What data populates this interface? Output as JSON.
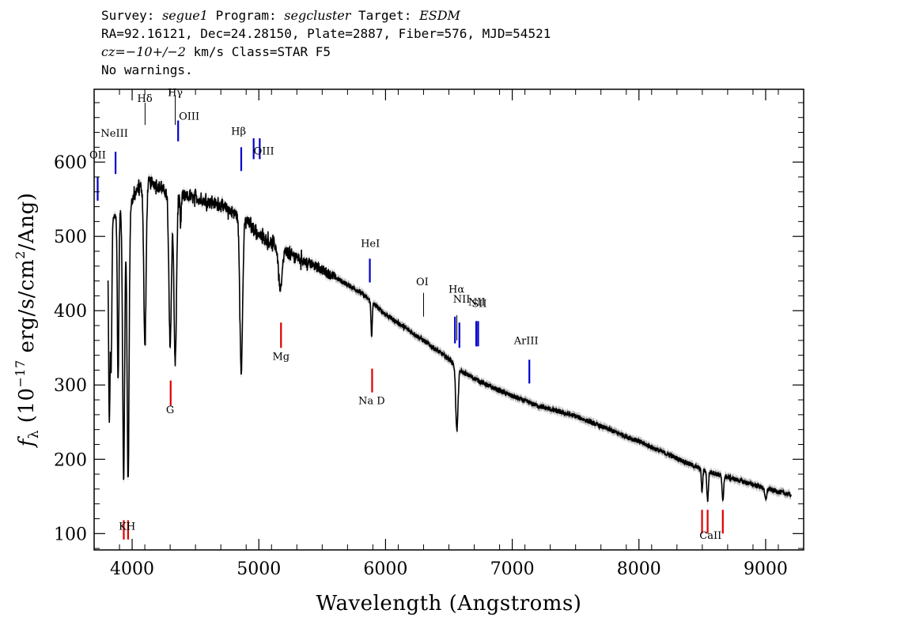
{
  "header": {
    "survey_label": "Survey:",
    "survey": "segue1",
    "program_label": "Program:",
    "program": "segcluster",
    "target_label": "Target:",
    "target": "ESDM",
    "coords": "RA=92.16121, Dec=24.28150, Plate=2887, Fiber=576, MJD=54521",
    "cz_label": "cz=",
    "cz_value": "−10+/−2",
    "cz_unit": " km/s Class=STAR F5",
    "warnings": "No warnings."
  },
  "chart_data": {
    "type": "line",
    "xlabel": "Wavelength (Angstroms)",
    "ylabel_prefix": "f",
    "ylabel_sub": "λ",
    "ylabel_rest": " (10",
    "ylabel_exp": "−17",
    "ylabel_units": " erg/s/cm",
    "ylabel_units_exp": "2",
    "ylabel_tail": "/Ang)",
    "xlim": [
      3700,
      9300
    ],
    "ylim": [
      78,
      698
    ],
    "xticks": [
      4000,
      5000,
      6000,
      7000,
      8000,
      9000
    ],
    "yticks": [
      100,
      200,
      300,
      400,
      500,
      600
    ],
    "xtick_labels": [
      "4000",
      "5000",
      "6000",
      "7000",
      "8000",
      "9000"
    ],
    "ytick_labels": [
      "100",
      "200",
      "300",
      "400",
      "500",
      "600"
    ],
    "colors": {
      "spectrum": "#000000",
      "error_band": "#b0b0b0",
      "emission": "#0000cc",
      "absorption": "#dd0000",
      "sky": "#000000"
    },
    "spectrum": {
      "continuum": [
        [
          3800,
          500
        ],
        [
          3880,
          535
        ],
        [
          3960,
          535
        ],
        [
          4050,
          565
        ],
        [
          4150,
          575
        ],
        [
          4300,
          555
        ],
        [
          4500,
          552
        ],
        [
          4700,
          542
        ],
        [
          4800,
          532
        ],
        [
          4900,
          522
        ],
        [
          5000,
          502
        ],
        [
          5200,
          480
        ],
        [
          5500,
          455
        ],
        [
          5800,
          425
        ],
        [
          6000,
          395
        ],
        [
          6300,
          360
        ],
        [
          6500,
          335
        ],
        [
          6600,
          318
        ],
        [
          6800,
          300
        ],
        [
          7000,
          285
        ],
        [
          7200,
          272
        ],
        [
          7500,
          258
        ],
        [
          8000,
          224
        ],
        [
          8500,
          186
        ],
        [
          9000,
          161
        ],
        [
          9200,
          152
        ]
      ],
      "absorption_features": [
        {
          "x": 3820,
          "depth": 260,
          "w": 6
        },
        {
          "x": 3835,
          "depth": 180,
          "w": 5
        },
        {
          "x": 3889,
          "depth": 230,
          "w": 6
        },
        {
          "x": 3933,
          "depth": 360,
          "w": 8
        },
        {
          "x": 3968,
          "depth": 360,
          "w": 8
        },
        {
          "x": 4101,
          "depth": 220,
          "w": 9
        },
        {
          "x": 4300,
          "depth": 200,
          "w": 10
        },
        {
          "x": 4340,
          "depth": 225,
          "w": 10
        },
        {
          "x": 4383,
          "depth": 40,
          "w": 4
        },
        {
          "x": 4861,
          "depth": 205,
          "w": 11
        },
        {
          "x": 5170,
          "depth": 55,
          "w": 14
        },
        {
          "x": 5890,
          "depth": 45,
          "w": 5
        },
        {
          "x": 6563,
          "depth": 85,
          "w": 9
        },
        {
          "x": 8498,
          "depth": 30,
          "w": 5
        },
        {
          "x": 8542,
          "depth": 40,
          "w": 6
        },
        {
          "x": 8662,
          "depth": 35,
          "w": 6
        },
        {
          "x": 9000,
          "depth": 15,
          "w": 8
        }
      ]
    },
    "lines": [
      {
        "label": "OII",
        "x": 3728,
        "type": "emission",
        "color": "#0000cc"
      },
      {
        "label": "NeIII",
        "x": 3869,
        "type": "emission",
        "color": "#0000cc"
      },
      {
        "label": "Hδ",
        "x": 4102,
        "type": "sky",
        "color": "#000000"
      },
      {
        "label": "Hγ",
        "x": 4340,
        "type": "sky",
        "color": "#000000"
      },
      {
        "label": "OIII",
        "x": 4363,
        "type": "emission",
        "color": "#0000cc"
      },
      {
        "label": "Hβ",
        "x": 4861,
        "type": "emission",
        "color": "#0000cc"
      },
      {
        "label": "OIII",
        "x": 4959,
        "type": "emission",
        "color": "#0000cc"
      },
      {
        "label": "OIII",
        "x": 5007,
        "type": "emission",
        "color": "#0000cc"
      },
      {
        "label": "HeI",
        "x": 5876,
        "type": "emission",
        "color": "#0000cc"
      },
      {
        "label": "OI",
        "x": 6300,
        "type": "sky",
        "color": "#000000"
      },
      {
        "label": "NII",
        "x": 6548,
        "type": "emission",
        "color": "#0000cc"
      },
      {
        "label": "Hα",
        "x": 6563,
        "type": "sky",
        "color": "#000000"
      },
      {
        "label": "NII",
        "x": 6583,
        "type": "emission",
        "color": "#0000cc"
      },
      {
        "label": "SII",
        "x": 6716,
        "type": "emission",
        "color": "#0000cc"
      },
      {
        "label": "SII",
        "x": 6731,
        "type": "emission",
        "color": "#0000cc"
      },
      {
        "label": "ArIII",
        "x": 7135,
        "type": "emission",
        "color": "#0000cc"
      },
      {
        "label": "K",
        "x": 3934,
        "type": "absorption",
        "color": "#dd0000"
      },
      {
        "label": "H",
        "x": 3968,
        "type": "absorption",
        "color": "#dd0000"
      },
      {
        "label": "G",
        "x": 4304,
        "type": "absorption",
        "color": "#dd0000"
      },
      {
        "label": "Mg",
        "x": 5175,
        "type": "absorption",
        "color": "#dd0000"
      },
      {
        "label": "Na D",
        "x": 5894,
        "type": "absorption",
        "color": "#dd0000"
      },
      {
        "label": "CaII",
        "x": 8498,
        "type": "absorption",
        "color": "#dd0000"
      },
      {
        "label": "CaII",
        "x": 8542,
        "type": "absorption",
        "color": "#dd0000"
      },
      {
        "label": "CaII",
        "x": 8662,
        "type": "absorption",
        "color": "#dd0000"
      }
    ],
    "line_labels": [
      {
        "text": "OII",
        "x": 3728,
        "y": 605
      },
      {
        "text": "NeIII",
        "x": 3860,
        "y": 634
      },
      {
        "text": "Hδ",
        "x": 4100,
        "y": 681
      },
      {
        "text": "Hγ",
        "x": 4340,
        "y": 689
      },
      {
        "text": "OIII",
        "x": 4450,
        "y": 657
      },
      {
        "text": "Hβ",
        "x": 4840,
        "y": 637
      },
      {
        "text": "OIII",
        "x": 5040,
        "y": 610
      },
      {
        "text": "HeI",
        "x": 5880,
        "y": 486
      },
      {
        "text": "OI",
        "x": 6290,
        "y": 434
      },
      {
        "text": "NII",
        "x": 6600,
        "y": 411
      },
      {
        "text": "Hα",
        "x": 6560,
        "y": 424
      },
      {
        "text": "NII",
        "x": 6720,
        "y": 407
      },
      {
        "text": "SII",
        "x": 6740,
        "y": 405
      },
      {
        "text": "ArIII",
        "x": 7110,
        "y": 355
      },
      {
        "text": "KH",
        "x": 3960,
        "y": 105
      },
      {
        "text": "G",
        "x": 4300,
        "y": 262
      },
      {
        "text": "Mg",
        "x": 5175,
        "y": 334
      },
      {
        "text": "Na  D",
        "x": 5890,
        "y": 274
      },
      {
        "text": "CaII",
        "x": 8565,
        "y": 93
      }
    ]
  }
}
